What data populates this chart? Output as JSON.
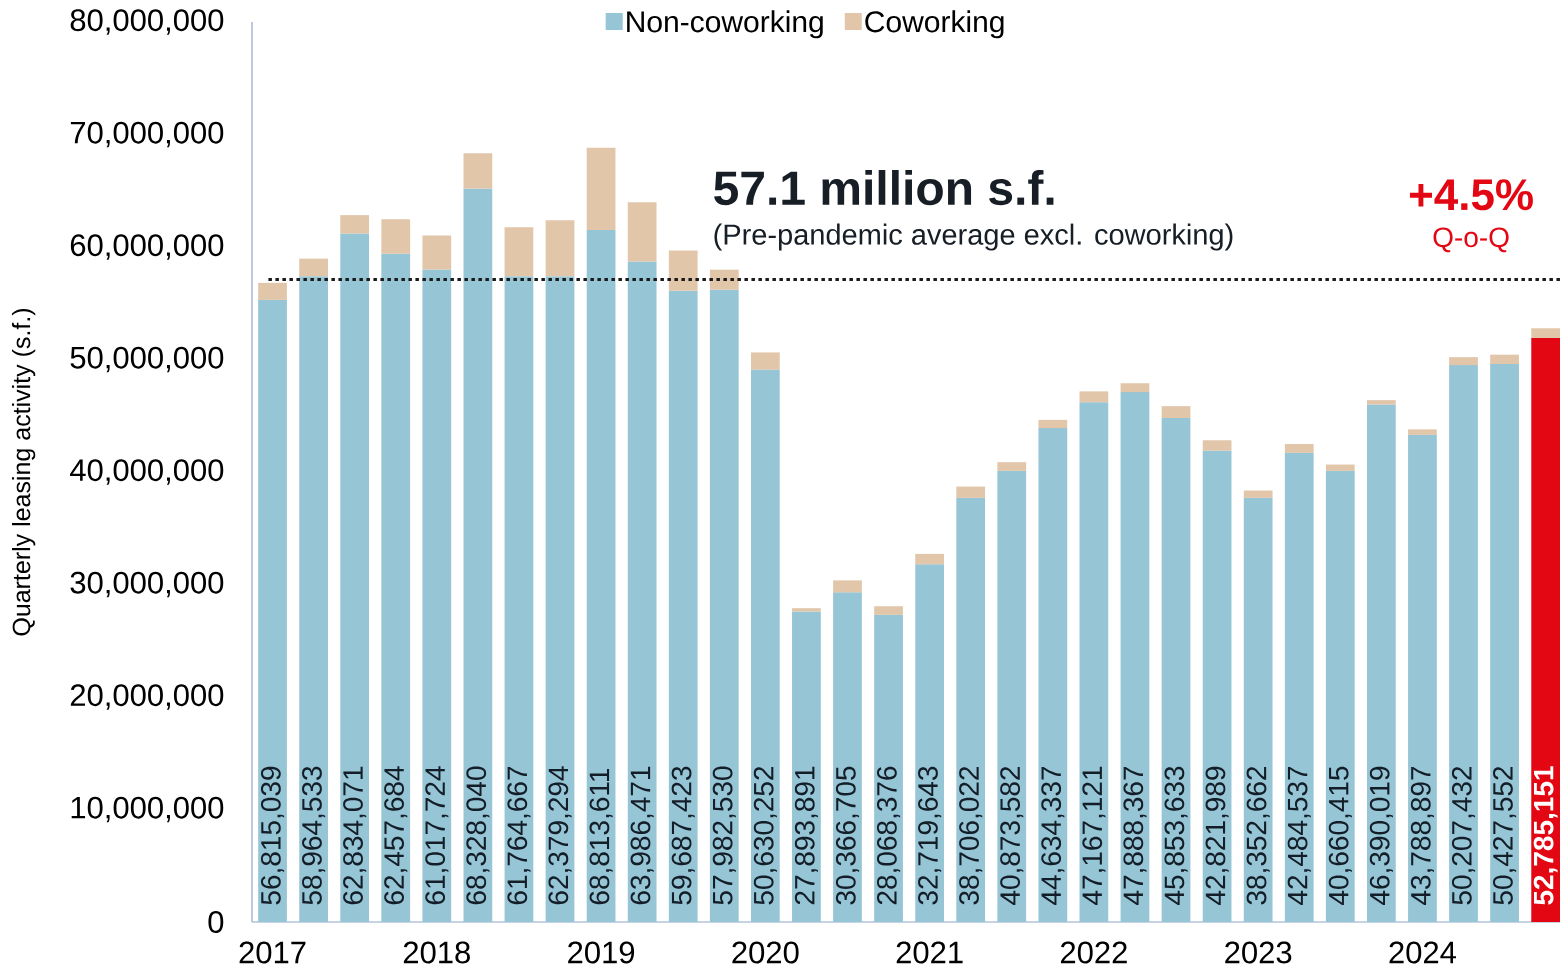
{
  "chart_data": {
    "type": "bar",
    "stacked": true,
    "ylabel": "Quarterly leasing activity (s.f.)",
    "categories": [
      "2017",
      null,
      null,
      null,
      "2018",
      null,
      null,
      null,
      "2019",
      null,
      null,
      null,
      "2020",
      null,
      null,
      null,
      "2021",
      null,
      null,
      null,
      "2022",
      null,
      null,
      null,
      "2023",
      null,
      null,
      null,
      "2024",
      null,
      null,
      null
    ],
    "series": [
      {
        "name": "Non-coworking",
        "color": "#96c5d5",
        "colors": [
          "#96c5d5",
          "#96c5d5",
          "#96c5d5",
          "#96c5d5",
          "#96c5d5",
          "#96c5d5",
          "#96c5d5",
          "#96c5d5",
          "#96c5d5",
          "#96c5d5",
          "#96c5d5",
          "#96c5d5",
          "#96c5d5",
          "#96c5d5",
          "#96c5d5",
          "#96c5d5",
          "#96c5d5",
          "#96c5d5",
          "#96c5d5",
          "#96c5d5",
          "#96c5d5",
          "#96c5d5",
          "#96c5d5",
          "#96c5d5",
          "#96c5d5",
          "#96c5d5",
          "#96c5d5",
          "#96c5d5",
          "#96c5d5",
          "#96c5d5",
          "#96c5d5",
          "#e30613"
        ],
        "values": [
          55300000,
          57400000,
          61200000,
          59400000,
          58000000,
          65200000,
          57400000,
          57400000,
          61500000,
          58700000,
          56100000,
          56200000,
          49100000,
          27600000,
          29300000,
          27300000,
          31800000,
          37700000,
          40100000,
          43900000,
          46200000,
          47100000,
          44800000,
          41900000,
          37700000,
          41700000,
          40100000,
          46000000,
          43300000,
          49500000,
          49600000,
          51900000
        ]
      },
      {
        "name": "Coworking",
        "color": "#e2c6aa",
        "values": [
          1515039,
          1564533,
          1634071,
          3057684,
          3017724,
          3128040,
          4364667,
          4979294,
          7313611,
          5286471,
          3587423,
          1782530,
          1530252,
          293891,
          1066705,
          768376,
          919643,
          1006022,
          773582,
          734337,
          967121,
          788367,
          1053633,
          921989,
          652662,
          784537,
          560415,
          390019,
          488897,
          707432,
          827552,
          885151
        ]
      }
    ],
    "totals": [
      "56,815,039",
      "58,964,533",
      "62,834,071",
      "62,457,684",
      "61,017,724",
      "68,328,040",
      "61,764,667",
      "62,379,294",
      "68,813,611",
      "63,986,471",
      "59,687,423",
      "57,982,530",
      "50,630,252",
      "27,893,891",
      "30,366,705",
      "28,068,376",
      "32,719,643",
      "38,706,022",
      "40,873,582",
      "44,634,337",
      "47,167,121",
      "47,888,367",
      "45,853,633",
      "42,821,989",
      "38,352,662",
      "42,484,537",
      "40,660,415",
      "46,390,019",
      "43,788,897",
      "50,207,432",
      "50,427,552",
      "52,785,151"
    ],
    "ylim": [
      0,
      80000000
    ],
    "yticks": [
      0,
      {
        "value": 10000000,
        "label": "10,000,000"
      },
      {
        "value": 20000000,
        "label": "20,000,000"
      },
      {
        "value": 30000000,
        "label": "30,000,000"
      },
      {
        "value": 40000000,
        "label": "40,000,000"
      },
      {
        "value": 50000000,
        "label": "50,000,000"
      },
      {
        "value": 60000000,
        "label": "60,000,000"
      },
      {
        "value": 70000000,
        "label": "70,000,000"
      },
      {
        "value": 80000000,
        "label": "80,000,000"
      }
    ],
    "ref_lines": [
      {
        "axis": "y",
        "value": 57100000,
        "label": "57.1 million s.f.",
        "line_style": "dotted",
        "color": "#1a1a1a"
      }
    ],
    "annotations": [
      "(Pre-pandemic average excl. coworking)",
      "+4.5%",
      "Q-o-Q"
    ],
    "legend": "top",
    "grid": false
  }
}
